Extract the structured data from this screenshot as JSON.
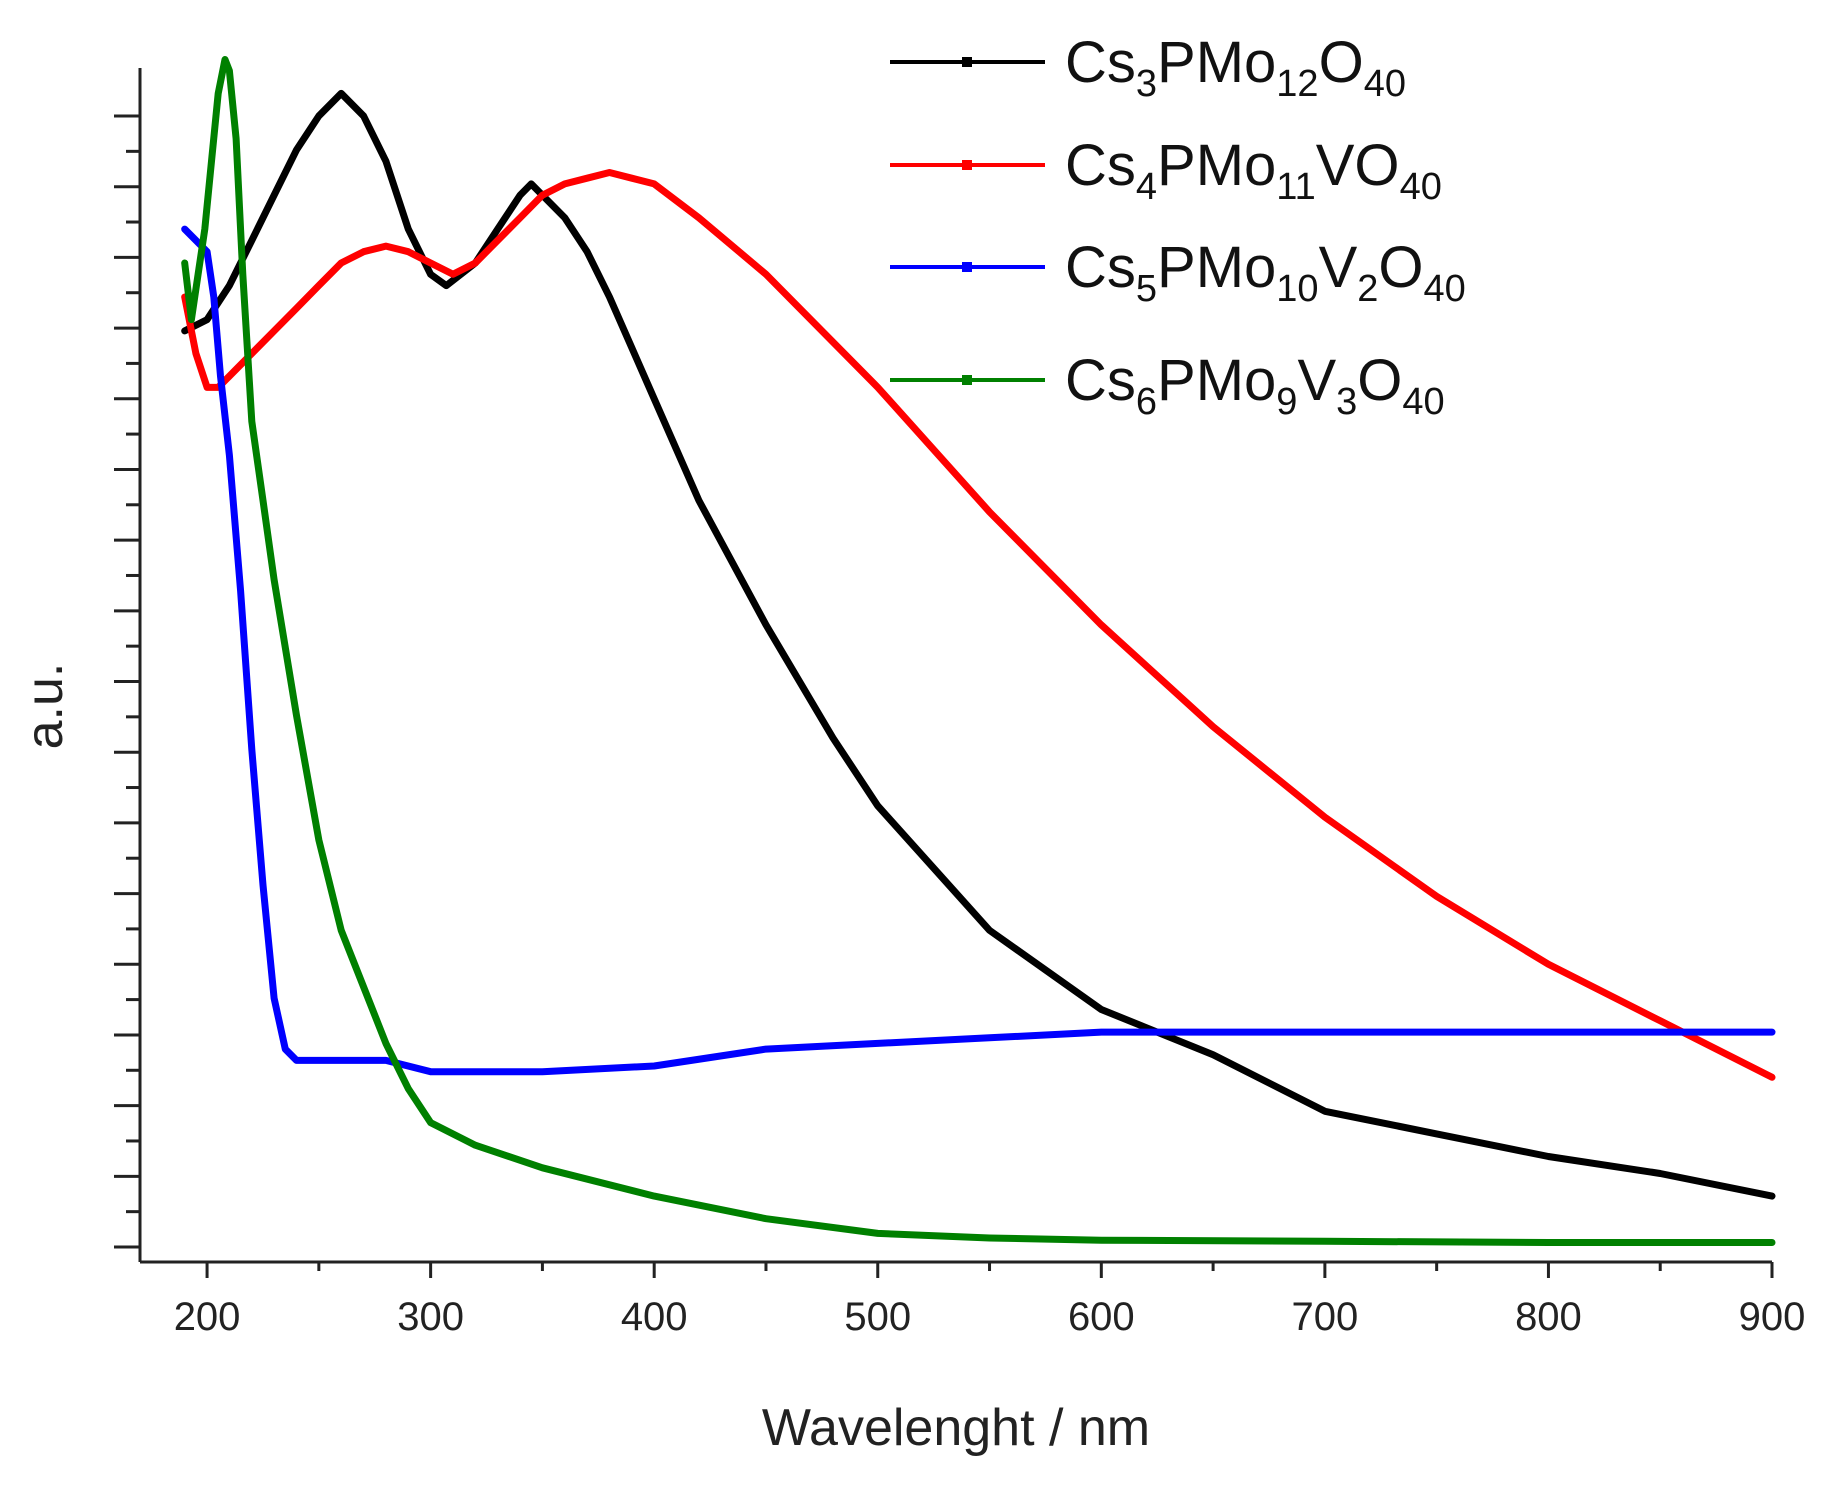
{
  "chart_data": {
    "type": "line",
    "title": "",
    "xlabel": "Wavelenght / nm",
    "ylabel": "a.u.",
    "xlim": [
      170,
      900
    ],
    "ylim": [
      0,
      1.05
    ],
    "x_ticks": [
      "200",
      "300",
      "400",
      "500",
      "600",
      "700",
      "800",
      "900"
    ],
    "y_tick_labels": "none",
    "legend_position": "top-right",
    "series": [
      {
        "name": "Cs3PMo12O40",
        "label_parts": [
          [
            "Cs",
            ""
          ],
          [
            "3",
            "sub"
          ],
          [
            "PMo",
            ""
          ],
          [
            "12",
            "sub"
          ],
          [
            "O",
            ""
          ],
          [
            "40",
            "sub"
          ]
        ],
        "color": "#000000",
        "x": [
          190,
          200,
          210,
          220,
          230,
          240,
          250,
          260,
          270,
          280,
          290,
          300,
          307,
          320,
          330,
          340,
          345,
          350,
          360,
          370,
          380,
          400,
          420,
          450,
          480,
          500,
          550,
          600,
          650,
          700,
          750,
          800,
          850,
          900
        ],
        "y": [
          0.81,
          0.82,
          0.85,
          0.89,
          0.93,
          0.97,
          1.0,
          1.02,
          1.0,
          0.96,
          0.9,
          0.86,
          0.85,
          0.87,
          0.9,
          0.93,
          0.94,
          0.93,
          0.91,
          0.88,
          0.84,
          0.75,
          0.66,
          0.55,
          0.45,
          0.39,
          0.28,
          0.21,
          0.17,
          0.12,
          0.1,
          0.08,
          0.065,
          0.045
        ]
      },
      {
        "name": "Cs4PMo11VO40",
        "label_parts": [
          [
            "Cs",
            ""
          ],
          [
            "4",
            "sub"
          ],
          [
            "PMo",
            ""
          ],
          [
            "11",
            "sub"
          ],
          [
            "VO",
            ""
          ],
          [
            "40",
            "sub"
          ]
        ],
        "color": "#ff0000",
        "x": [
          190,
          195,
          200,
          205,
          210,
          220,
          230,
          240,
          250,
          260,
          270,
          280,
          290,
          300,
          310,
          320,
          330,
          340,
          350,
          360,
          370,
          380,
          390,
          400,
          420,
          450,
          500,
          550,
          600,
          650,
          700,
          750,
          800,
          850,
          900
        ],
        "y": [
          0.84,
          0.79,
          0.76,
          0.76,
          0.77,
          0.79,
          0.81,
          0.83,
          0.85,
          0.87,
          0.88,
          0.885,
          0.88,
          0.87,
          0.86,
          0.87,
          0.89,
          0.91,
          0.93,
          0.94,
          0.945,
          0.95,
          0.945,
          0.94,
          0.91,
          0.86,
          0.76,
          0.65,
          0.55,
          0.46,
          0.38,
          0.31,
          0.25,
          0.2,
          0.15
        ]
      },
      {
        "name": "Cs5PMo10V2O40",
        "label_parts": [
          [
            "Cs",
            ""
          ],
          [
            "5",
            "sub"
          ],
          [
            "PMo",
            ""
          ],
          [
            "10",
            "sub"
          ],
          [
            "V",
            ""
          ],
          [
            "2",
            "sub"
          ],
          [
            "O",
            ""
          ],
          [
            "40",
            "sub"
          ]
        ],
        "color": "#0000ff",
        "x": [
          190,
          195,
          200,
          203,
          206,
          210,
          215,
          220,
          225,
          230,
          235,
          240,
          250,
          280,
          300,
          350,
          400,
          450,
          500,
          550,
          600,
          650,
          700,
          750,
          800,
          850,
          900
        ],
        "y": [
          0.9,
          0.89,
          0.88,
          0.84,
          0.77,
          0.7,
          0.58,
          0.44,
          0.32,
          0.22,
          0.175,
          0.165,
          0.165,
          0.165,
          0.155,
          0.155,
          0.16,
          0.175,
          0.18,
          0.185,
          0.19,
          0.19,
          0.19,
          0.19,
          0.19,
          0.19,
          0.19
        ]
      },
      {
        "name": "Cs6PMo9V3O40",
        "label_parts": [
          [
            "Cs",
            ""
          ],
          [
            "6",
            "sub"
          ],
          [
            "PMo",
            ""
          ],
          [
            "9",
            "sub"
          ],
          [
            "V",
            ""
          ],
          [
            "3",
            "sub"
          ],
          [
            "O",
            ""
          ],
          [
            "40",
            "sub"
          ]
        ],
        "color": "#008000",
        "x": [
          190,
          193,
          196,
          199,
          202,
          205,
          208,
          210,
          213,
          216,
          220,
          225,
          230,
          240,
          250,
          260,
          270,
          280,
          290,
          300,
          320,
          350,
          400,
          450,
          500,
          550,
          600,
          700,
          800,
          900
        ],
        "y": [
          0.87,
          0.82,
          0.86,
          0.9,
          0.96,
          1.02,
          1.05,
          1.04,
          0.98,
          0.86,
          0.73,
          0.66,
          0.59,
          0.47,
          0.36,
          0.28,
          0.23,
          0.18,
          0.14,
          0.11,
          0.09,
          0.07,
          0.045,
          0.025,
          0.012,
          0.008,
          0.006,
          0.005,
          0.004,
          0.004
        ]
      }
    ]
  }
}
